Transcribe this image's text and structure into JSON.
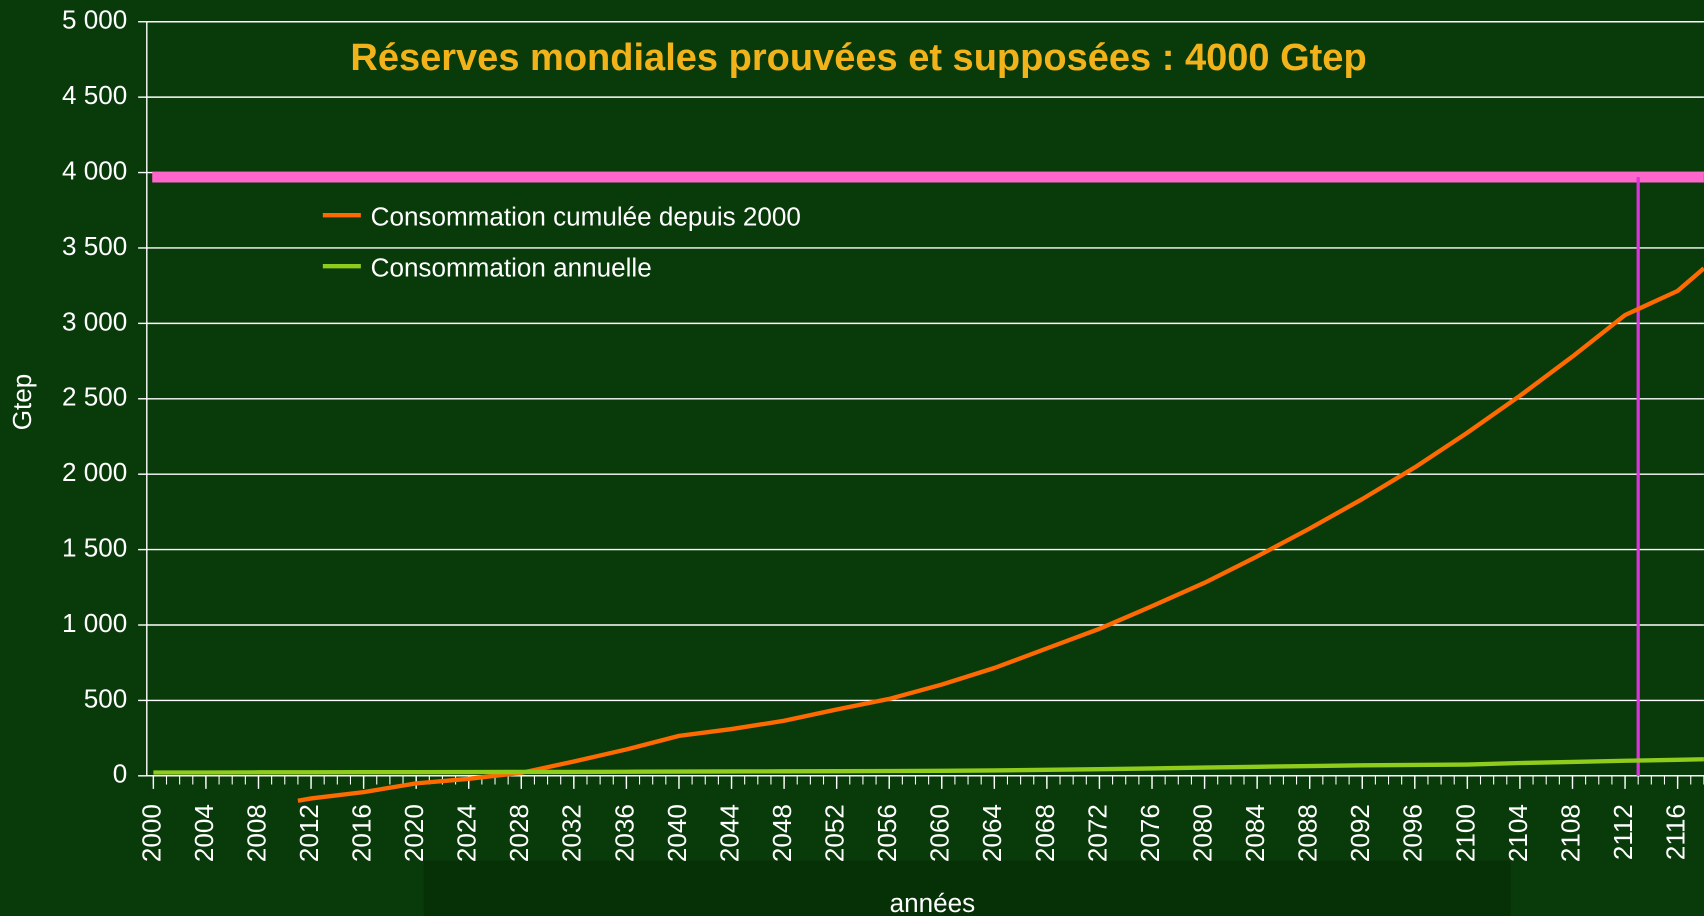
{
  "chart_data": {
    "type": "line",
    "title": "Réserves mondiales prouvées et supposées : 4000 Gtep",
    "x_label": "années",
    "y_label": "Gtep",
    "x": [
      2000,
      2004,
      2008,
      2011,
      2012,
      2016,
      2020,
      2024,
      2028,
      2032,
      2036,
      2040,
      2044,
      2048,
      2052,
      2056,
      2060,
      2064,
      2068,
      2072,
      2076,
      2080,
      2084,
      2088,
      2092,
      2096,
      2100,
      2104,
      2108,
      2112,
      2116,
      2118
    ],
    "series": [
      {
        "name": "Consommation cumulée depuis 2000",
        "color": "#ff6a00",
        "values": [
          null,
          null,
          null,
          -165,
          -150,
          -108,
          -50,
          -20,
          20,
          95,
          175,
          265,
          310,
          365,
          440,
          510,
          605,
          715,
          845,
          975,
          1125,
          1280,
          1455,
          1640,
          1835,
          2045,
          2275,
          2520,
          2780,
          3055,
          3215,
          3365
        ]
      },
      {
        "name": "Consommation annuelle",
        "color": "#8fcc1c",
        "values": [
          22,
          22,
          23,
          23,
          23,
          24,
          24,
          25,
          26,
          26,
          27,
          28,
          29,
          30,
          31,
          32,
          33,
          36,
          40,
          44,
          49,
          55,
          60,
          65,
          70,
          72,
          75,
          85,
          92,
          100,
          106,
          110
        ]
      }
    ],
    "reference_line_y": {
      "value": 3970,
      "color": "#ff66cc"
    },
    "reference_line_x": {
      "value": 2113,
      "color": "#dd33dd"
    },
    "xlim": [
      1999.5,
      2118
    ],
    "xticks": [
      2000,
      2004,
      2008,
      2012,
      2016,
      2020,
      2024,
      2028,
      2032,
      2036,
      2040,
      2044,
      2048,
      2052,
      2056,
      2060,
      2064,
      2068,
      2072,
      2076,
      2080,
      2084,
      2088,
      2092,
      2096,
      2100,
      2104,
      2108,
      2112,
      2116
    ],
    "ylim": [
      0,
      5000
    ],
    "yticks": [
      0,
      500,
      {
        "value": 1000,
        "label": "1 000"
      },
      {
        "value": 1500,
        "label": "1 500"
      },
      {
        "value": 2000,
        "label": "2 000"
      },
      {
        "value": 2500,
        "label": "2 500"
      },
      {
        "value": 3000,
        "label": "3 000"
      },
      {
        "value": 3500,
        "label": "3 500"
      },
      {
        "value": 4000,
        "label": "4 000"
      },
      {
        "value": 4500,
        "label": "4 500"
      },
      {
        "value": 5000,
        "label": "5 000"
      }
    ],
    "grid": true,
    "legend_position": "top-left"
  }
}
